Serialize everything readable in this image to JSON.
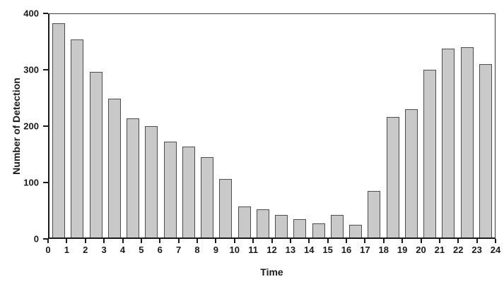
{
  "chart_data": {
    "type": "bar",
    "title": "",
    "xlabel": "Time",
    "ylabel": "Number of Detection",
    "categories": [
      0,
      1,
      2,
      3,
      4,
      5,
      6,
      7,
      8,
      9,
      10,
      11,
      12,
      13,
      14,
      15,
      16,
      17,
      18,
      19,
      20,
      21,
      22,
      23
    ],
    "values": [
      384,
      355,
      296,
      249,
      213,
      200,
      171,
      163,
      144,
      105,
      56,
      50,
      40,
      33,
      25,
      40,
      23,
      83,
      216,
      230,
      300,
      338,
      341,
      310
    ],
    "x_tick_labels": [
      "0",
      "1",
      "2",
      "3",
      "4",
      "5",
      "6",
      "7",
      "8",
      "9",
      "10",
      "11",
      "12",
      "13",
      "14",
      "15",
      "16",
      "17",
      "18",
      "19",
      "20",
      "21",
      "22",
      "23",
      "24"
    ],
    "y_tick_labels": [
      "0",
      "100",
      "200",
      "300",
      "400"
    ],
    "y_tick_values": [
      0,
      100,
      200,
      300,
      400
    ],
    "ylim": [
      0,
      400
    ],
    "xlim": [
      0,
      24
    ],
    "grid": false,
    "legend": null,
    "bar_fill_color": "#c9c9c9",
    "bar_border_color": "#4d4d4d",
    "axis_color": "#1a1a1a",
    "background_color": "#ffffff"
  }
}
